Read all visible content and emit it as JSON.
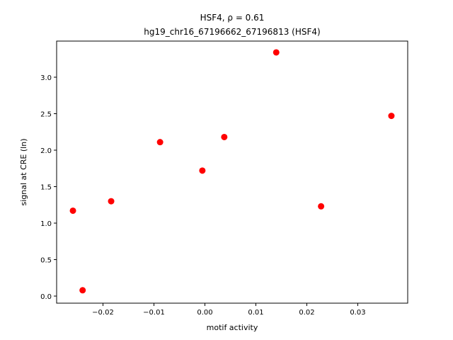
{
  "chart_data": {
    "type": "scatter",
    "title": "HSF4, ρ = 0.61",
    "subtitle": "hg19_chr16_67196662_67196813 (HSF4)",
    "x_label": "motif activity",
    "y_label": "signal at CRE (ln)",
    "series": [
      {
        "color": "#ff0000",
        "x": [
          -0.0259,
          -0.024,
          -0.0184,
          -0.0088,
          -0.0005,
          0.0038,
          0.014,
          0.0228,
          0.0366
        ],
        "values": [
          1.17,
          0.08,
          1.3,
          2.11,
          1.72,
          2.18,
          3.34,
          1.23,
          2.47
        ]
      }
    ],
    "xlim": [
      -0.0291,
      0.0398
    ],
    "ylim": [
      -0.097,
      3.495
    ],
    "xticks": [
      {
        "value": -0.02,
        "label": "−0.02"
      },
      {
        "value": -0.01,
        "label": "−0.01"
      },
      {
        "value": 0,
        "label": "0.00"
      },
      0.01,
      0.02,
      0.03
    ],
    "yticks": [
      {
        "value": 0,
        "label": "0.0"
      },
      0.5,
      {
        "value": 1,
        "label": "1.0"
      },
      1.5,
      {
        "value": 2,
        "label": "2.0"
      },
      2.5,
      {
        "value": 3,
        "label": "3.0"
      }
    ]
  }
}
